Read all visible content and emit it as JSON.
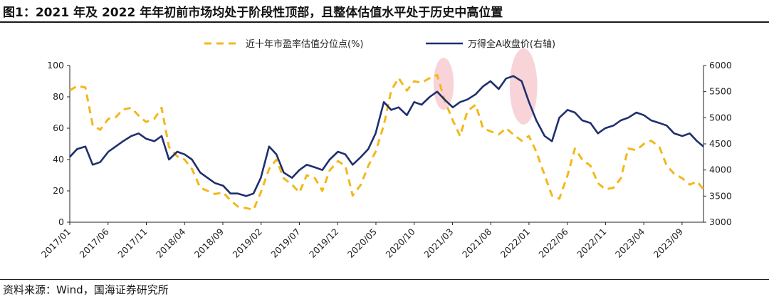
{
  "title": "图1：2021 年及 2022 年年初前市场均处于阶段性顶部，且整体估值水平处于历史中高位置",
  "source": "资料来源：Wind，国海证券研究所",
  "colors": {
    "pe_series": "#f2b81c",
    "index_series": "#1f2f6e",
    "highlight": "#f4b8c0",
    "axis": "#222222"
  },
  "chart_data": {
    "type": "line",
    "title": "",
    "xlabel": "",
    "ylabel": "",
    "y2label": "",
    "ylim": [
      0,
      100
    ],
    "y2lim": [
      3000,
      6000
    ],
    "yticks": [
      "0",
      "20",
      "40",
      "60",
      "80",
      "100"
    ],
    "y2ticks": [
      "3000",
      "3500",
      "4000",
      "4500",
      "5000",
      "5500",
      "6000"
    ],
    "xlim": [
      2017.0,
      2023.9
    ],
    "xtick_labels": [
      "2017/01",
      "2017/06",
      "2017/11",
      "2018/04",
      "2018/09",
      "2019/02",
      "2019/07",
      "2019/12",
      "2020/05",
      "2020/10",
      "2021/03",
      "2021/08",
      "2022/01",
      "2022/06",
      "2022/11",
      "2023/04",
      "2023/09"
    ],
    "highlights": [
      {
        "x_center": 2021.07,
        "y_center": 5650,
        "x_halfwidth": 0.11,
        "y_halfwidth": 500,
        "axis": "right"
      },
      {
        "x_center": 2021.94,
        "y_center": 5600,
        "x_halfwidth": 0.15,
        "y_halfwidth": 730,
        "axis": "right"
      }
    ],
    "series": [
      {
        "name": "近十年市盈率估值分位点(%)",
        "axis": "left",
        "style": "dashed",
        "x": [
          2017.0,
          2017.08,
          2017.17,
          2017.25,
          2017.33,
          2017.42,
          2017.5,
          2017.58,
          2017.67,
          2017.75,
          2017.83,
          2017.92,
          2018.0,
          2018.08,
          2018.17,
          2018.25,
          2018.33,
          2018.42,
          2018.5,
          2018.58,
          2018.67,
          2018.75,
          2018.83,
          2018.92,
          2019.0,
          2019.08,
          2019.17,
          2019.25,
          2019.33,
          2019.42,
          2019.5,
          2019.58,
          2019.67,
          2019.75,
          2019.83,
          2019.92,
          2020.0,
          2020.08,
          2020.17,
          2020.25,
          2020.33,
          2020.42,
          2020.5,
          2020.58,
          2020.67,
          2020.75,
          2020.83,
          2020.92,
          2021.0,
          2021.08,
          2021.17,
          2021.25,
          2021.33,
          2021.42,
          2021.5,
          2021.58,
          2021.67,
          2021.75,
          2021.83,
          2021.92,
          2022.0,
          2022.08,
          2022.17,
          2022.25,
          2022.33,
          2022.42,
          2022.5,
          2022.58,
          2022.67,
          2022.75,
          2022.83,
          2022.92,
          2023.0,
          2023.08,
          2023.17,
          2023.25,
          2023.33,
          2023.42,
          2023.5,
          2023.58,
          2023.67,
          2023.75,
          2023.83,
          2023.9
        ],
        "values": [
          84,
          87,
          86,
          62,
          59,
          66,
          67,
          72,
          73,
          68,
          64,
          66,
          73,
          48,
          42,
          40,
          34,
          22,
          20,
          18,
          19,
          14,
          10,
          9,
          8,
          19,
          34,
          40,
          28,
          24,
          19,
          30,
          28,
          20,
          33,
          39,
          36,
          17,
          24,
          36,
          45,
          62,
          84,
          92,
          84,
          90,
          89,
          92,
          94,
          78,
          65,
          55,
          71,
          75,
          60,
          58,
          56,
          60,
          56,
          52,
          55,
          45,
          30,
          17,
          15,
          30,
          47,
          40,
          36,
          25,
          21,
          22,
          28,
          47,
          46,
          50,
          52,
          48,
          36,
          31,
          28,
          24,
          26,
          21
        ]
      },
      {
        "name": "万得全A收盘价(右轴)",
        "axis": "right",
        "style": "solid",
        "x": [
          2017.0,
          2017.08,
          2017.17,
          2017.25,
          2017.33,
          2017.42,
          2017.5,
          2017.58,
          2017.67,
          2017.75,
          2017.83,
          2017.92,
          2018.0,
          2018.08,
          2018.17,
          2018.25,
          2018.33,
          2018.42,
          2018.5,
          2018.58,
          2018.67,
          2018.75,
          2018.83,
          2018.92,
          2019.0,
          2019.08,
          2019.17,
          2019.25,
          2019.33,
          2019.42,
          2019.5,
          2019.58,
          2019.67,
          2019.75,
          2019.83,
          2019.92,
          2020.0,
          2020.08,
          2020.17,
          2020.25,
          2020.33,
          2020.42,
          2020.5,
          2020.58,
          2020.67,
          2020.75,
          2020.83,
          2020.92,
          2021.0,
          2021.08,
          2021.17,
          2021.25,
          2021.33,
          2021.42,
          2021.5,
          2021.58,
          2021.67,
          2021.75,
          2021.83,
          2021.92,
          2022.0,
          2022.08,
          2022.17,
          2022.25,
          2022.33,
          2022.42,
          2022.5,
          2022.58,
          2022.67,
          2022.75,
          2022.83,
          2022.92,
          2023.0,
          2023.08,
          2023.17,
          2023.25,
          2023.33,
          2023.42,
          2023.5,
          2023.58,
          2023.67,
          2023.75,
          2023.83,
          2023.9
        ],
        "values": [
          4250,
          4400,
          4450,
          4100,
          4150,
          4350,
          4450,
          4550,
          4650,
          4700,
          4600,
          4550,
          4650,
          4200,
          4350,
          4300,
          4200,
          3950,
          3850,
          3750,
          3700,
          3550,
          3550,
          3500,
          3550,
          3850,
          4450,
          4300,
          3950,
          3850,
          4000,
          4100,
          4050,
          4000,
          4200,
          4350,
          4300,
          4100,
          4250,
          4400,
          4700,
          5300,
          5150,
          5200,
          5050,
          5300,
          5250,
          5400,
          5500,
          5350,
          5200,
          5300,
          5350,
          5450,
          5600,
          5700,
          5550,
          5750,
          5800,
          5700,
          5300,
          4950,
          4650,
          4550,
          5000,
          5150,
          5100,
          4950,
          4900,
          4700,
          4800,
          4850,
          4950,
          5000,
          5100,
          5050,
          4950,
          4900,
          4850,
          4700,
          4650,
          4700,
          4550,
          4450
        ]
      }
    ]
  }
}
